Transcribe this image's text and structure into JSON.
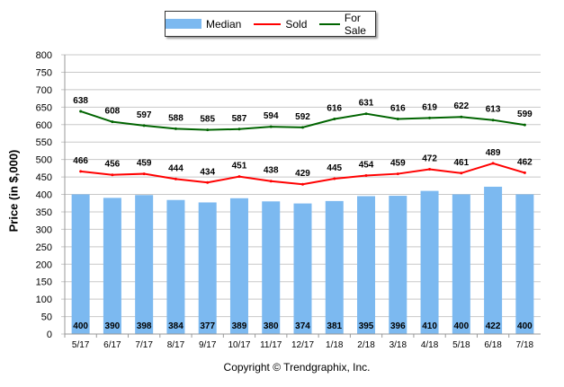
{
  "chart_data": {
    "type": "bar",
    "title": "",
    "xlabel": "",
    "ylabel": "Price (in $,000)",
    "ylim": [
      0,
      800
    ],
    "yticks": [
      0,
      50,
      100,
      150,
      200,
      250,
      300,
      350,
      400,
      450,
      500,
      550,
      600,
      650,
      700,
      750,
      800
    ],
    "grid": true,
    "legend_position": "top-center",
    "categories": [
      "5/17",
      "6/17",
      "7/17",
      "8/17",
      "9/17",
      "10/17",
      "11/17",
      "12/17",
      "1/18",
      "2/18",
      "3/18",
      "4/18",
      "5/18",
      "6/18",
      "7/18"
    ],
    "series": [
      {
        "name": "Median",
        "type": "bar",
        "color": "#7cb9f0",
        "values": [
          400,
          390,
          398,
          384,
          377,
          389,
          380,
          374,
          381,
          395,
          396,
          410,
          400,
          422,
          400
        ]
      },
      {
        "name": "Sold",
        "type": "line",
        "color": "#ff0000",
        "values": [
          466,
          456,
          459,
          444,
          434,
          451,
          438,
          429,
          445,
          454,
          459,
          472,
          461,
          489,
          462
        ]
      },
      {
        "name": "For Sale",
        "type": "line",
        "color": "#006400",
        "values": [
          638,
          608,
          597,
          588,
          585,
          587,
          594,
          592,
          616,
          631,
          616,
          619,
          622,
          613,
          599
        ]
      }
    ]
  },
  "copyright": "Copyright © Trendgraphix, Inc."
}
